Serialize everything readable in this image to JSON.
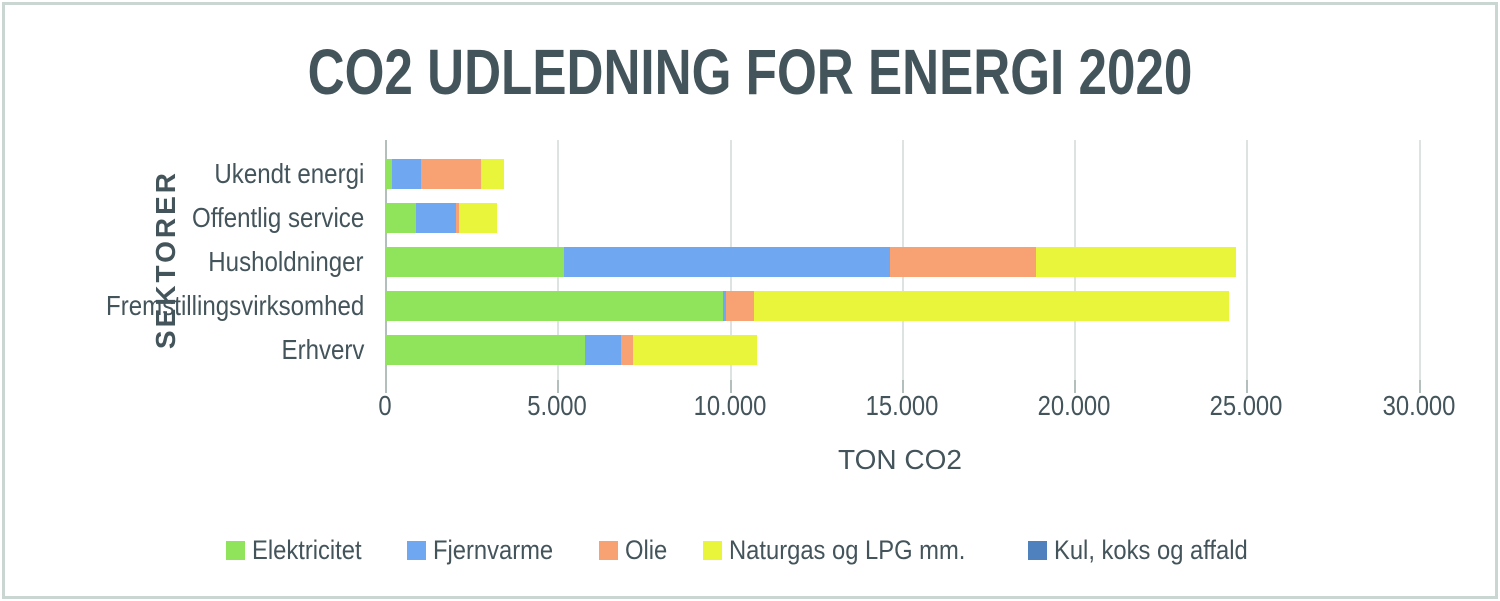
{
  "chart_data": {
    "type": "bar",
    "orientation": "horizontal",
    "stacked": true,
    "title": "CO2 UDLEDNING FOR ENERGI 2020",
    "xlabel": "TON CO2",
    "ylabel": "SEKTORER",
    "categories": [
      "Ukendt energi",
      "Offentlig service",
      "Husholdninger",
      "Fremstillingsvirksomhed",
      "Erhverv"
    ],
    "series": [
      {
        "name": "Elektricitet",
        "color": "#8fe45c",
        "values": [
          200,
          900,
          5200,
          9800,
          5800
        ]
      },
      {
        "name": "Fjernvarme",
        "color": "#6fa7f1",
        "values": [
          850,
          1150,
          9450,
          100,
          1050
        ]
      },
      {
        "name": "Olie",
        "color": "#f8a173",
        "values": [
          1750,
          100,
          4250,
          800,
          350
        ]
      },
      {
        "name": "Naturgas og LPG mm.",
        "color": "#e8f53b",
        "values": [
          650,
          1100,
          5800,
          13800,
          3600
        ]
      },
      {
        "name": "Kul, koks og affald",
        "color": "#4e81bd",
        "values": [
          0,
          0,
          0,
          0,
          0
        ]
      }
    ],
    "x_axis": {
      "min": 0,
      "max": 30000,
      "tick_step": 5000,
      "tick_labels": [
        "0",
        "5.000",
        "10.000",
        "15.000",
        "20.000",
        "25.000",
        "30.000"
      ],
      "axis_extends_to": 31200
    },
    "grid": true,
    "legend_position": "bottom"
  },
  "style_colors": {
    "text": "#43545b",
    "gridline": "#dce3e0",
    "axis_line": "#b3bfbc",
    "frame_border": "#c9d6d1",
    "background": "#ffffff"
  }
}
